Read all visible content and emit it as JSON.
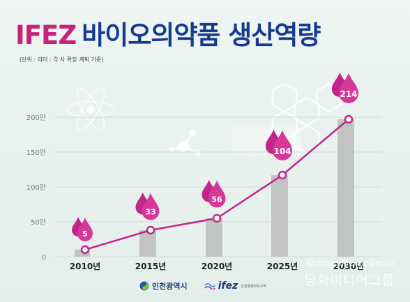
{
  "title": {
    "brand": "IFEZ",
    "rest": "바이오의약품 생산역량"
  },
  "subtitle": "(단위 : 리터 : 각 사 확장 계획 기준)",
  "chart_data": {
    "type": "bar",
    "categories": [
      "2010년",
      "2015년",
      "2020년",
      "2025년",
      "2030년"
    ],
    "values": [
      5,
      33,
      56,
      104,
      214
    ],
    "series": [
      {
        "values": [
          10,
          38,
          55,
          117,
          197
        ]
      }
    ],
    "yticks": [
      "0",
      "50만",
      "100만",
      "150만",
      "200만"
    ],
    "ylim": [
      0,
      220
    ],
    "grid": true,
    "colors": {
      "bar": "#c2c4c4",
      "line": "#c0268a",
      "marker_fill": "#ffffff",
      "drop": "#c0268a",
      "drop_front": "#d8379a"
    }
  },
  "footer": {
    "incheon": "인천광역시",
    "ifez": "ifez",
    "ifez_sub": "인천경제자유구역"
  },
  "watermark": {
    "en": "DonwahMedia Group",
    "ko": "담화미디어그룹"
  }
}
